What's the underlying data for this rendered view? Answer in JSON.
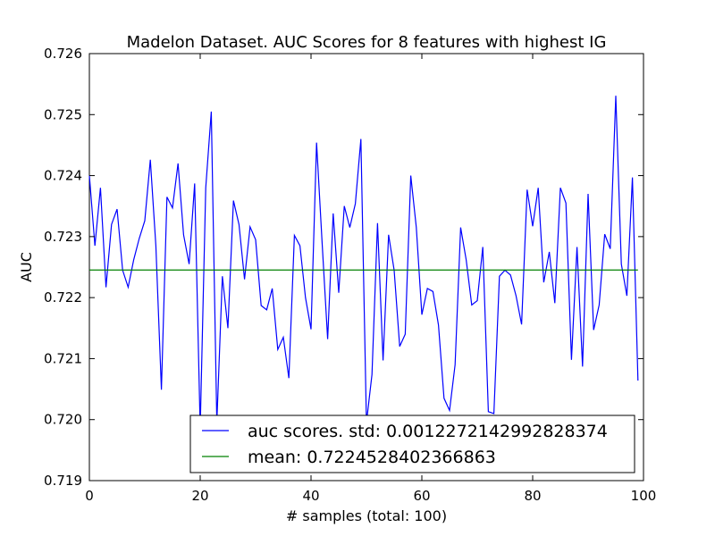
{
  "chart_data": {
    "type": "line",
    "title": "Madelon Dataset. AUC Scores for 8 features with highest IG",
    "xlabel": "# samples (total: 100)",
    "ylabel": "AUC",
    "xlim": [
      0,
      100
    ],
    "ylim": [
      0.719,
      0.726
    ],
    "xticks": [
      "0",
      "20",
      "40",
      "60",
      "80",
      "100"
    ],
    "yticks": [
      "0.719",
      "0.720",
      "0.721",
      "0.722",
      "0.723",
      "0.724",
      "0.725",
      "0.726"
    ],
    "legend_position": "lower-right",
    "grid": false,
    "series": [
      {
        "name": "auc scores. std: 0.0012272142992828374",
        "color": "#0000ff",
        "x": [
          0,
          1,
          2,
          3,
          4,
          5,
          6,
          7,
          8,
          9,
          10,
          11,
          12,
          13,
          14,
          15,
          16,
          17,
          18,
          19,
          20,
          21,
          22,
          23,
          24,
          25,
          26,
          27,
          28,
          29,
          30,
          31,
          32,
          33,
          34,
          35,
          36,
          37,
          38,
          39,
          40,
          41,
          42,
          43,
          44,
          45,
          46,
          47,
          48,
          49,
          50,
          51,
          52,
          53,
          54,
          55,
          56,
          57,
          58,
          59,
          60,
          61,
          62,
          63,
          64,
          65,
          66,
          67,
          68,
          69,
          70,
          71,
          72,
          73,
          74,
          75,
          76,
          77,
          78,
          79,
          80,
          81,
          82,
          83,
          84,
          85,
          86,
          87,
          88,
          89,
          90,
          91,
          92,
          93,
          94,
          95,
          96,
          97,
          98,
          99
        ],
        "y": [
          0.724,
          0.72285,
          0.7238,
          0.72217,
          0.7232,
          0.72345,
          0.72245,
          0.72217,
          0.72262,
          0.72297,
          0.72326,
          0.72426,
          0.72285,
          0.72049,
          0.72365,
          0.72347,
          0.7242,
          0.72303,
          0.72255,
          0.72387,
          0.71985,
          0.7238,
          0.72505,
          0.71995,
          0.72235,
          0.7215,
          0.72359,
          0.7232,
          0.7223,
          0.72316,
          0.72295,
          0.72187,
          0.7218,
          0.72215,
          0.72115,
          0.72135,
          0.72068,
          0.72302,
          0.72285,
          0.722,
          0.72148,
          0.72454,
          0.7229,
          0.72132,
          0.72338,
          0.72208,
          0.7235,
          0.72315,
          0.72354,
          0.7246,
          0.71995,
          0.72074,
          0.72322,
          0.72097,
          0.72303,
          0.72245,
          0.7212,
          0.7214,
          0.724,
          0.72315,
          0.72172,
          0.72215,
          0.7221,
          0.72155,
          0.72035,
          0.72015,
          0.7209,
          0.72315,
          0.72262,
          0.72188,
          0.72195,
          0.72283,
          0.72013,
          0.7201,
          0.72235,
          0.72245,
          0.72237,
          0.72203,
          0.72156,
          0.72377,
          0.72317,
          0.7238,
          0.72225,
          0.72275,
          0.72191,
          0.7238,
          0.72355,
          0.72098,
          0.72283,
          0.72087,
          0.7237,
          0.72147,
          0.72188,
          0.72304,
          0.7228,
          0.72531,
          0.72255,
          0.72203,
          0.72397,
          0.72064
        ]
      },
      {
        "name": "mean: 0.7224528402366863",
        "color": "#008000",
        "x": [
          0,
          99
        ],
        "y": [
          0.7224528402366863,
          0.7224528402366863
        ]
      }
    ]
  }
}
